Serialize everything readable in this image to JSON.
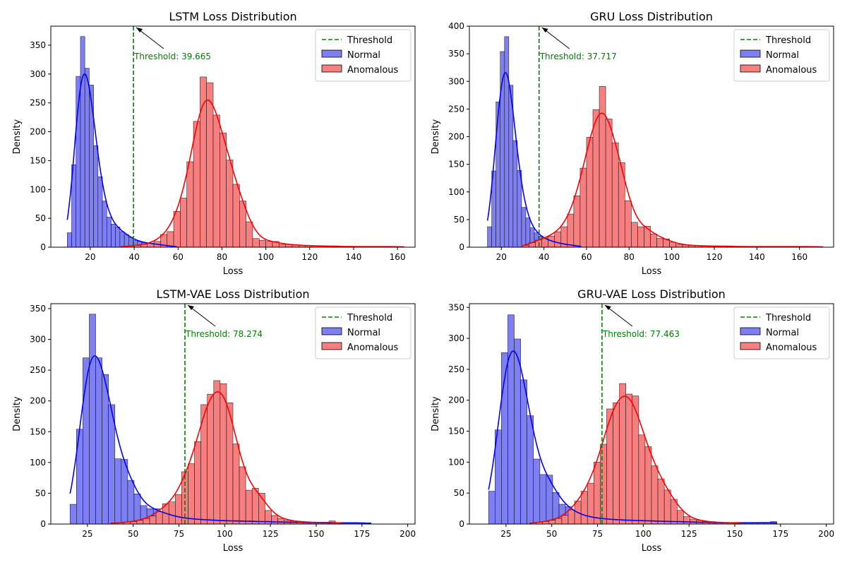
{
  "chart_data": [
    {
      "type": "bar",
      "title": "LSTM Loss Distribution",
      "xlabel": "Loss",
      "ylabel": "Density",
      "xlim": [
        2,
        168
      ],
      "ylim": [
        0,
        383
      ],
      "xticks": [
        20,
        40,
        60,
        80,
        100,
        120,
        140,
        160
      ],
      "yticks": [
        0,
        50,
        100,
        150,
        200,
        250,
        300,
        350
      ],
      "legend_position": "top-right",
      "legend": [
        "Threshold",
        "Normal",
        "Anomalous"
      ],
      "threshold": {
        "value": 39.665,
        "label": "Threshold: 39.665"
      },
      "series": [
        {
          "name": "Normal",
          "bin_width": 2.0,
          "bins_start": [
            9.5,
            11.5,
            13.5,
            15.5,
            17.5,
            19.5,
            21.5,
            23.5,
            25.5,
            27.5,
            29.5,
            31.5,
            33.5,
            35.5,
            37.5,
            39.5,
            41.5,
            43.5,
            45.5,
            47.5,
            49.5,
            51.5,
            53.5,
            55.5,
            57.5
          ],
          "values": [
            25,
            143,
            296,
            365,
            310,
            281,
            176,
            122,
            80,
            52,
            40,
            35,
            27,
            22,
            17,
            12,
            10,
            8,
            7,
            6,
            5,
            4,
            3,
            2,
            1
          ]
        },
        {
          "name": "Anomalous",
          "bin_width": 3.0,
          "bins_start": [
            34,
            37,
            40,
            43,
            46,
            49,
            52,
            55,
            58,
            61,
            64,
            67,
            70,
            73,
            76,
            79,
            82,
            85,
            88,
            91,
            94,
            97,
            100,
            103,
            106,
            109,
            112,
            115,
            118,
            121,
            124,
            127,
            130,
            133,
            136,
            139,
            142,
            145,
            148,
            151,
            154,
            157,
            160
          ],
          "values": [
            1,
            2,
            3,
            5,
            7,
            10,
            22,
            27,
            62,
            85,
            148,
            218,
            295,
            285,
            229,
            198,
            151,
            109,
            80,
            44,
            15,
            12,
            10,
            10,
            5,
            5,
            4,
            3,
            3,
            2,
            2,
            2,
            2,
            1,
            1,
            1,
            1,
            1,
            1,
            1,
            1,
            1,
            1
          ]
        }
      ]
    },
    {
      "type": "bar",
      "title": "GRU Loss Distribution",
      "xlabel": "Loss",
      "ylabel": "Density",
      "xlim": [
        5,
        176
      ],
      "ylim": [
        0,
        400
      ],
      "xticks": [
        20,
        40,
        60,
        80,
        100,
        120,
        140,
        160
      ],
      "yticks": [
        0,
        50,
        100,
        150,
        200,
        250,
        300,
        350,
        400
      ],
      "legend_position": "top-right",
      "legend": [
        "Threshold",
        "Normal",
        "Anomalous"
      ],
      "threshold": {
        "value": 37.717,
        "label": "Threshold: 37.717"
      },
      "series": [
        {
          "name": "Normal",
          "bin_width": 2.0,
          "bins_start": [
            13.5,
            15.5,
            17.5,
            19.5,
            21.5,
            23.5,
            25.5,
            27.5,
            29.5,
            31.5,
            33.5,
            35.5,
            37.5,
            39.5,
            41.5,
            43.5,
            45.5,
            47.5,
            49.5,
            51.5,
            53.5,
            55.5
          ],
          "values": [
            37,
            138,
            263,
            354,
            381,
            293,
            193,
            139,
            72,
            53,
            35,
            26,
            20,
            15,
            12,
            10,
            8,
            6,
            5,
            4,
            3,
            2
          ]
        },
        {
          "name": "Anomalous",
          "bin_width": 3.0,
          "bins_start": [
            30,
            33,
            36,
            39,
            42,
            45,
            48,
            51,
            54,
            57,
            60,
            63,
            66,
            69,
            72,
            75,
            78,
            81,
            84,
            87,
            90,
            93,
            96,
            99,
            102,
            105,
            108,
            111,
            114,
            117,
            120,
            123,
            126,
            129,
            132,
            135,
            138,
            141,
            144,
            147,
            150,
            153,
            156,
            159,
            162,
            165,
            168
          ],
          "values": [
            3,
            8,
            13,
            18,
            20,
            28,
            37,
            60,
            93,
            143,
            199,
            249,
            291,
            232,
            189,
            153,
            84,
            45,
            37,
            38,
            24,
            16,
            15,
            9,
            5,
            4,
            3,
            3,
            2,
            2,
            2,
            2,
            2,
            1,
            1,
            1,
            1,
            1,
            1,
            1,
            1,
            1,
            1,
            1,
            1,
            1,
            1
          ]
        }
      ]
    },
    {
      "type": "bar",
      "title": "LSTM-VAE Loss Distribution",
      "xlabel": "Loss",
      "ylabel": "Density",
      "xlim": [
        5,
        204
      ],
      "ylim": [
        0,
        358
      ],
      "xticks": [
        25,
        50,
        75,
        100,
        125,
        150,
        175,
        200
      ],
      "yticks": [
        0,
        50,
        100,
        150,
        200,
        250,
        300,
        350
      ],
      "legend_position": "top-right",
      "legend": [
        "Threshold",
        "Normal",
        "Anomalous"
      ],
      "threshold": {
        "value": 78.274,
        "label": "Threshold: 78.274"
      },
      "series": [
        {
          "name": "Normal",
          "bin_width": 3.5,
          "bins_start": [
            15.5,
            19,
            22.5,
            26,
            29.5,
            33,
            36.5,
            40,
            43.5,
            47,
            50.5,
            54,
            57.5,
            61,
            64.5,
            68,
            71.5,
            75,
            78.5,
            82,
            85.5,
            89,
            92.5,
            96,
            99.5,
            103,
            106.5,
            110,
            113.5,
            117,
            120.5,
            124,
            127.5,
            131,
            134.5,
            138,
            141.5,
            145,
            148.5,
            152,
            155.5,
            159,
            162.5,
            166,
            169.5,
            173,
            176.5
          ],
          "values": [
            32,
            154,
            270,
            341,
            270,
            243,
            194,
            106,
            105,
            71,
            49,
            30,
            25,
            25,
            18,
            15,
            12,
            10,
            9,
            8,
            7,
            7,
            6,
            6,
            5,
            5,
            5,
            5,
            4,
            4,
            4,
            4,
            3,
            3,
            3,
            3,
            3,
            2,
            2,
            2,
            2,
            2,
            2,
            2,
            2,
            2,
            2
          ]
        },
        {
          "name": "Anomalous",
          "bin_width": 3.5,
          "bins_start": [
            38,
            41.5,
            45,
            48.5,
            52,
            55.5,
            59,
            62.5,
            66,
            69.5,
            73,
            76.5,
            80,
            83.5,
            87,
            90.5,
            94,
            97.5,
            101,
            104.5,
            108,
            111.5,
            115,
            118.5,
            122,
            125.5,
            129,
            132.5,
            136,
            139.5,
            143,
            146.5,
            150,
            153.5,
            157,
            160.5
          ],
          "values": [
            2,
            2,
            3,
            4,
            6,
            9,
            13,
            20,
            33,
            36,
            48,
            85,
            98,
            134,
            194,
            211,
            233,
            228,
            197,
            130,
            93,
            55,
            58,
            50,
            22,
            14,
            9,
            6,
            5,
            4,
            3,
            3,
            2,
            2,
            5,
            1
          ]
        }
      ]
    },
    {
      "type": "bar",
      "title": "GRU-VAE Loss Distribution",
      "xlabel": "Loss",
      "ylabel": "Density",
      "xlim": [
        5,
        204
      ],
      "ylim": [
        0,
        356
      ],
      "xticks": [
        25,
        50,
        75,
        100,
        125,
        150,
        175,
        200
      ],
      "yticks": [
        0,
        50,
        100,
        150,
        200,
        250,
        300,
        350
      ],
      "legend_position": "top-right",
      "legend": [
        "Threshold",
        "Normal",
        "Anomalous"
      ],
      "threshold": {
        "value": 77.463,
        "label": "Threshold: 77.463"
      },
      "series": [
        {
          "name": "Normal",
          "bin_width": 3.5,
          "bins_start": [
            15.5,
            19,
            22.5,
            26,
            29.5,
            33,
            36.5,
            40,
            43.5,
            47,
            50.5,
            54,
            57.5,
            61,
            64.5,
            68,
            71.5,
            75,
            78.5,
            82,
            85.5,
            89,
            92.5,
            96,
            99.5,
            103,
            106.5,
            110,
            113.5,
            117,
            120.5,
            124,
            127.5,
            131,
            134.5,
            138,
            141.5,
            145,
            148.5,
            152,
            155.5,
            159,
            162.5,
            166,
            169.5
          ],
          "values": [
            53,
            152,
            277,
            338,
            299,
            233,
            175,
            105,
            80,
            79,
            51,
            32,
            28,
            18,
            15,
            12,
            10,
            9,
            8,
            7,
            7,
            6,
            6,
            6,
            5,
            5,
            5,
            4,
            4,
            4,
            4,
            3,
            3,
            3,
            3,
            2,
            2,
            2,
            2,
            2,
            2,
            2,
            2,
            2,
            4
          ]
        },
        {
          "name": "Anomalous",
          "bin_width": 3.5,
          "bins_start": [
            38,
            41.5,
            45,
            48.5,
            52,
            55.5,
            59,
            62.5,
            66,
            69.5,
            73,
            76.5,
            80,
            83.5,
            87,
            90.5,
            94,
            97.5,
            101,
            104.5,
            108,
            111.5,
            115,
            118.5,
            122,
            125.5,
            129,
            132.5,
            136,
            139.5,
            143,
            146.5,
            150
          ],
          "values": [
            2,
            3,
            4,
            6,
            9,
            14,
            23,
            37,
            53,
            66,
            100,
            129,
            186,
            196,
            227,
            210,
            207,
            144,
            125,
            94,
            73,
            55,
            40,
            22,
            12,
            8,
            6,
            4,
            3,
            3,
            2,
            2,
            2
          ]
        }
      ]
    }
  ],
  "colors": {
    "normal_fill": "#7f7ff5",
    "normal_line": "#0000ff",
    "anomalous_fill": "#f87f7f",
    "anomalous_line": "#ff0000",
    "threshold": "#008000",
    "edge": "#000000"
  }
}
